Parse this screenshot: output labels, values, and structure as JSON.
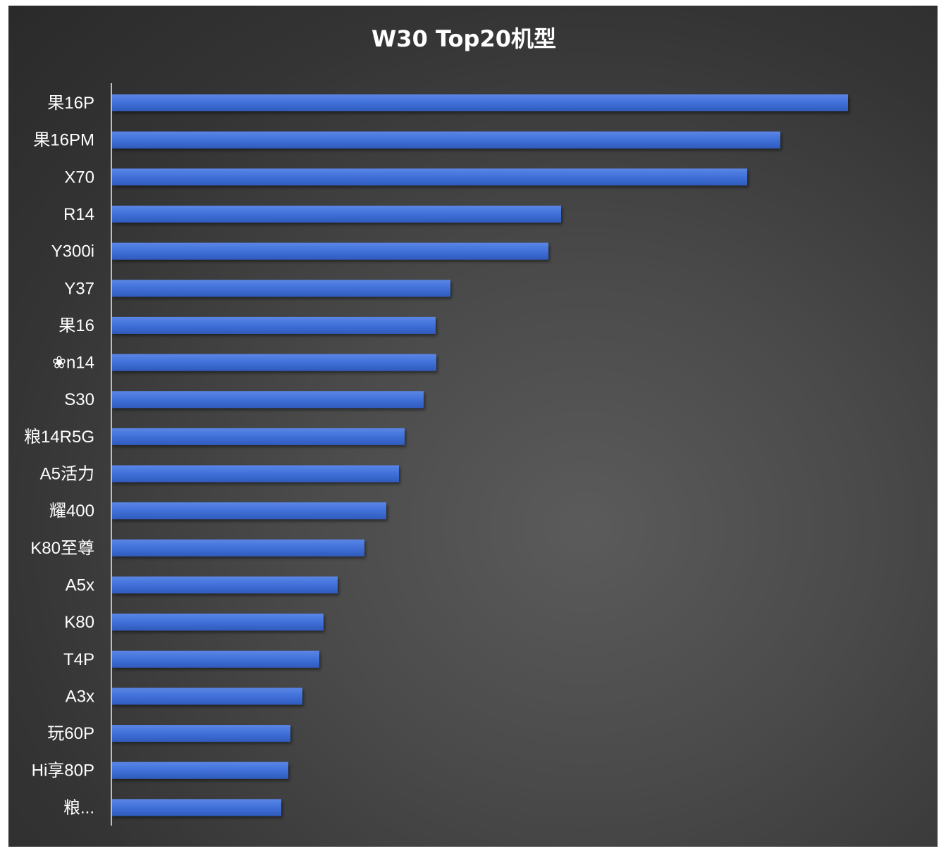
{
  "chart_data": {
    "type": "bar",
    "orientation": "horizontal",
    "title": "W30 Top20机型",
    "xlabel": "",
    "ylabel": "",
    "categories": [
      "果16P",
      "果16PM",
      "X70",
      "R14",
      "Y300i",
      "Y37",
      "果16",
      "❀n14",
      "S30",
      "粮14R5G",
      "A5活力",
      "耀400",
      "K80至尊",
      "A5x",
      "K80",
      "T4P",
      "A3x",
      "玩60P",
      "Hi享80P",
      "粮..."
    ],
    "values": [
      1045,
      949,
      902,
      638,
      620,
      481,
      460,
      461,
      443,
      416,
      408,
      390,
      359,
      321,
      301,
      295,
      271,
      254,
      251,
      241
    ],
    "xlim": [
      0,
      1170
    ],
    "value_axis_visible": false,
    "grid": false,
    "legend": "none",
    "bar_color": "#3f6fd6",
    "background_color": "#3a3a3a"
  }
}
